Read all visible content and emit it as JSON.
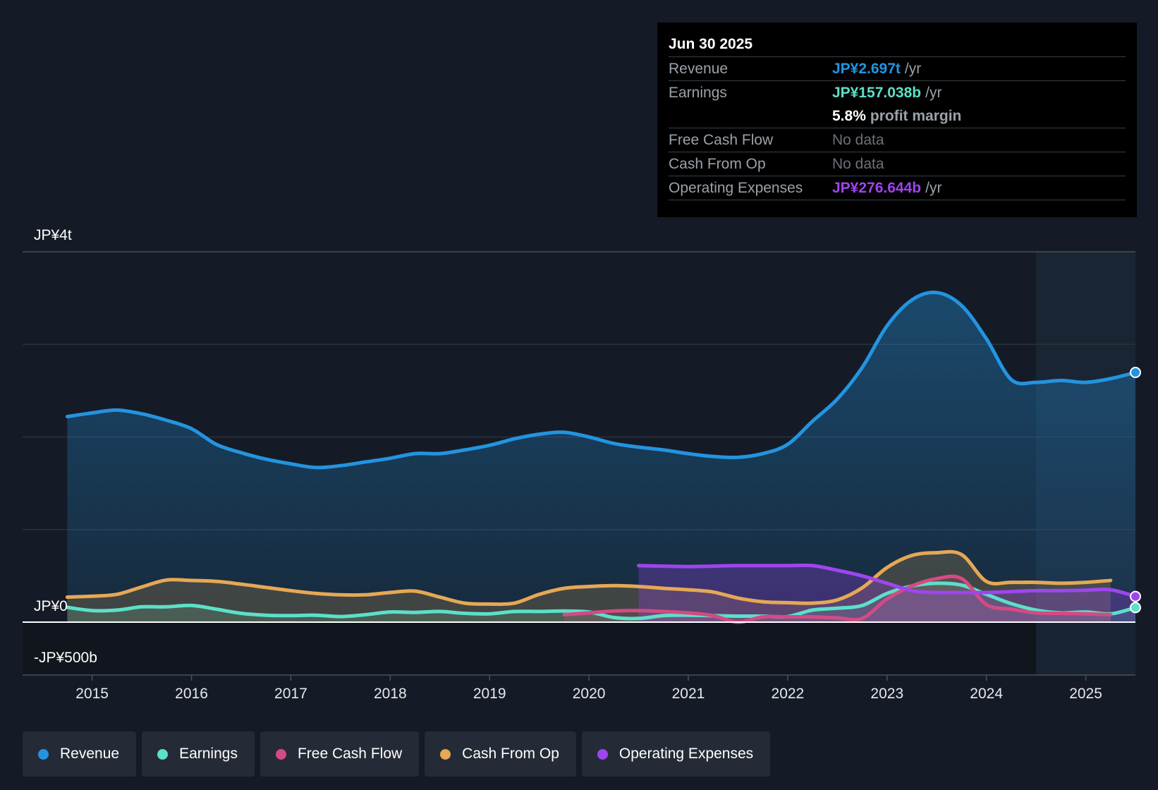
{
  "chart_data": {
    "type": "area",
    "title": "",
    "x_ticks": [
      "2015",
      "2016",
      "2017",
      "2018",
      "2019",
      "2020",
      "2021",
      "2022",
      "2023",
      "2024",
      "2025"
    ],
    "y_tick_labels": [
      {
        "value": 4000,
        "label": "JP¥4t"
      },
      {
        "value": 0,
        "label": "JP¥0"
      },
      {
        "value": -500,
        "label": "-JP¥500b"
      }
    ],
    "ylim": [
      -500,
      4000
    ],
    "xlim": [
      2014.3,
      2025.5
    ],
    "gridlines": [
      4000,
      3000,
      2000,
      1000
    ],
    "highlight_start": 2024.5,
    "units": "JP¥ billions",
    "series": [
      {
        "name": "Revenue",
        "color": "#2394e0",
        "x": [
          2014.75,
          2015.0,
          2015.25,
          2015.5,
          2015.75,
          2016.0,
          2016.25,
          2016.5,
          2016.75,
          2017.0,
          2017.25,
          2017.5,
          2017.75,
          2018.0,
          2018.25,
          2018.5,
          2018.75,
          2019.0,
          2019.25,
          2019.5,
          2019.75,
          2020.0,
          2020.25,
          2020.5,
          2020.75,
          2021.0,
          2021.25,
          2021.5,
          2021.75,
          2022.0,
          2022.25,
          2022.5,
          2022.75,
          2023.0,
          2023.25,
          2023.5,
          2023.75,
          2024.0,
          2024.25,
          2024.5,
          2024.75,
          2025.0,
          2025.25,
          2025.5
        ],
        "values": [
          2220,
          2260,
          2290,
          2250,
          2180,
          2090,
          1920,
          1830,
          1760,
          1710,
          1670,
          1690,
          1730,
          1770,
          1820,
          1820,
          1860,
          1910,
          1980,
          2030,
          2050,
          2000,
          1930,
          1890,
          1860,
          1820,
          1790,
          1780,
          1820,
          1920,
          2170,
          2410,
          2750,
          3200,
          3480,
          3560,
          3420,
          3060,
          2620,
          2590,
          2610,
          2590,
          2630,
          2697
        ]
      },
      {
        "name": "Earnings",
        "color": "#5ce0c8",
        "x": [
          2014.75,
          2015.0,
          2015.25,
          2015.5,
          2015.75,
          2016.0,
          2016.25,
          2016.5,
          2016.75,
          2017.0,
          2017.25,
          2017.5,
          2017.75,
          2018.0,
          2018.25,
          2018.5,
          2018.75,
          2019.0,
          2019.25,
          2019.5,
          2019.75,
          2020.0,
          2020.25,
          2020.5,
          2020.75,
          2021.0,
          2021.25,
          2021.5,
          2021.75,
          2022.0,
          2022.25,
          2022.5,
          2022.75,
          2023.0,
          2023.25,
          2023.5,
          2023.75,
          2024.0,
          2024.25,
          2024.5,
          2024.75,
          2025.0,
          2025.25,
          2025.5
        ],
        "values": [
          160,
          125,
          130,
          165,
          165,
          180,
          140,
          95,
          75,
          70,
          75,
          60,
          80,
          110,
          105,
          115,
          95,
          90,
          115,
          115,
          120,
          110,
          50,
          40,
          70,
          75,
          70,
          65,
          65,
          60,
          130,
          150,
          180,
          310,
          390,
          420,
          400,
          300,
          200,
          130,
          100,
          110,
          90,
          157
        ]
      },
      {
        "name": "Free Cash Flow",
        "color": "#d34b84",
        "x": [
          2019.75,
          2020.0,
          2020.25,
          2020.5,
          2020.75,
          2021.0,
          2021.25,
          2021.5,
          2021.75,
          2022.0,
          2022.25,
          2022.5,
          2022.75,
          2023.0,
          2023.25,
          2023.5,
          2023.75,
          2024.0,
          2024.25,
          2024.5,
          2024.75,
          2025.0,
          2025.25
        ],
        "values": [
          80,
          100,
          120,
          125,
          115,
          100,
          70,
          0,
          -50,
          -50,
          -50,
          -40,
          40,
          250,
          390,
          470,
          470,
          190,
          140,
          100,
          95,
          90,
          80
        ]
      },
      {
        "name": "Cash From Op",
        "color": "#e6a855",
        "x": [
          2014.75,
          2015.0,
          2015.25,
          2015.5,
          2015.75,
          2016.0,
          2016.25,
          2016.5,
          2016.75,
          2017.0,
          2017.25,
          2017.5,
          2017.75,
          2018.0,
          2018.25,
          2018.5,
          2018.75,
          2019.0,
          2019.25,
          2019.5,
          2019.75,
          2020.0,
          2020.25,
          2020.5,
          2020.75,
          2021.0,
          2021.25,
          2021.5,
          2021.75,
          2022.0,
          2022.25,
          2022.5,
          2022.75,
          2023.0,
          2023.25,
          2023.5,
          2023.75,
          2024.0,
          2024.25,
          2024.5,
          2024.75,
          2025.0,
          2025.25
        ],
        "values": [
          270,
          280,
          300,
          380,
          455,
          450,
          440,
          410,
          375,
          340,
          310,
          295,
          295,
          320,
          335,
          270,
          205,
          195,
          205,
          300,
          365,
          385,
          395,
          385,
          365,
          350,
          325,
          260,
          220,
          210,
          205,
          240,
          370,
          590,
          720,
          750,
          730,
          440,
          430,
          430,
          420,
          430,
          450
        ]
      },
      {
        "name": "Operating Expenses",
        "color": "#a044f0",
        "x": [
          2020.5,
          2020.75,
          2021.0,
          2021.25,
          2021.5,
          2021.75,
          2022.0,
          2022.25,
          2022.5,
          2022.75,
          2023.0,
          2023.25,
          2023.5,
          2023.75,
          2024.0,
          2024.25,
          2024.5,
          2024.75,
          2025.0,
          2025.25,
          2025.5
        ],
        "values": [
          610,
          605,
          600,
          605,
          610,
          610,
          610,
          610,
          560,
          500,
          420,
          340,
          320,
          320,
          320,
          330,
          340,
          340,
          345,
          350,
          277
        ]
      }
    ]
  },
  "tooltip": {
    "date": "Jun 30 2025",
    "rows": [
      {
        "label": "Revenue",
        "value": "JP¥2.697t",
        "unit": "/yr",
        "color": "#2394e0"
      },
      {
        "label": "Earnings",
        "value": "JP¥157.038b",
        "unit": "/yr",
        "color": "#5ce0c8"
      },
      {
        "label": "",
        "value": "5.8%",
        "unit": "profit margin",
        "color": "#ffffff"
      },
      {
        "label": "Free Cash Flow",
        "value": "No data",
        "unit": "",
        "color": "#6b7079"
      },
      {
        "label": "Cash From Op",
        "value": "No data",
        "unit": "",
        "color": "#6b7079"
      },
      {
        "label": "Operating Expenses",
        "value": "JP¥276.644b",
        "unit": "/yr",
        "color": "#a044f0"
      }
    ]
  },
  "legend": [
    {
      "label": "Revenue",
      "color": "#2394e0"
    },
    {
      "label": "Earnings",
      "color": "#5ce0c8"
    },
    {
      "label": "Free Cash Flow",
      "color": "#d34b84"
    },
    {
      "label": "Cash From Op",
      "color": "#e6a855"
    },
    {
      "label": "Operating Expenses",
      "color": "#a044f0"
    }
  ]
}
